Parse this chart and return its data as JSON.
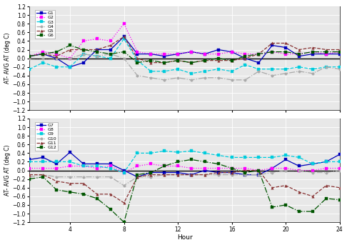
{
  "hours": [
    1,
    2,
    3,
    4,
    5,
    6,
    7,
    8,
    9,
    10,
    11,
    12,
    13,
    14,
    15,
    16,
    17,
    18,
    19,
    20,
    21,
    22,
    23,
    24
  ],
  "top": {
    "G1": [
      0.05,
      0.1,
      0.0,
      -0.2,
      -0.1,
      0.2,
      0.2,
      0.5,
      0.1,
      0.1,
      0.05,
      0.1,
      0.15,
      0.1,
      0.2,
      0.15,
      0.0,
      -0.1,
      0.3,
      0.25,
      0.05,
      0.1,
      0.1,
      0.1
    ],
    "G2": [
      0.05,
      0.15,
      0.1,
      0.0,
      0.4,
      0.45,
      0.4,
      0.8,
      0.15,
      0.1,
      0.1,
      0.1,
      0.15,
      0.1,
      0.1,
      0.15,
      0.1,
      0.1,
      0.15,
      0.1,
      0.1,
      0.15,
      0.1,
      0.15
    ],
    "G3": [
      -0.25,
      -0.1,
      -0.2,
      -0.2,
      0.1,
      0.05,
      0.0,
      0.45,
      -0.05,
      -0.3,
      -0.3,
      -0.25,
      -0.35,
      -0.3,
      -0.25,
      -0.3,
      -0.15,
      -0.25,
      -0.25,
      -0.25,
      -0.2,
      -0.25,
      -0.2,
      -0.2
    ],
    "G4": [
      0.0,
      0.0,
      0.0,
      0.0,
      0.1,
      0.05,
      0.1,
      0.0,
      -0.4,
      -0.45,
      -0.5,
      -0.45,
      -0.5,
      -0.45,
      -0.45,
      -0.5,
      -0.5,
      -0.3,
      -0.4,
      -0.35,
      -0.3,
      -0.35,
      -0.2,
      -0.25
    ],
    "G5": [
      0.05,
      0.1,
      0.05,
      0.2,
      0.2,
      0.2,
      0.3,
      0.5,
      0.0,
      -0.1,
      -0.1,
      -0.05,
      -0.1,
      -0.05,
      -0.05,
      -0.05,
      0.0,
      0.1,
      0.35,
      0.35,
      0.2,
      0.25,
      0.2,
      0.2
    ],
    "G6": [
      0.05,
      0.1,
      0.15,
      0.3,
      0.2,
      0.15,
      0.1,
      0.15,
      -0.1,
      -0.05,
      -0.1,
      -0.05,
      -0.1,
      -0.05,
      0.0,
      -0.05,
      0.05,
      0.1,
      0.15,
      0.15,
      0.1,
      0.15,
      0.15,
      0.15
    ]
  },
  "bottom": {
    "G7": [
      0.25,
      0.3,
      0.15,
      0.42,
      0.15,
      0.15,
      0.15,
      0.0,
      -0.15,
      -0.05,
      -0.05,
      -0.05,
      -0.1,
      0.0,
      -0.05,
      -0.05,
      -0.1,
      -0.1,
      0.05,
      0.25,
      0.1,
      0.15,
      0.2,
      0.37
    ],
    "G8": [
      0.05,
      0.05,
      0.05,
      0.1,
      0.1,
      0.05,
      0.1,
      -0.05,
      0.1,
      0.15,
      0.1,
      0.1,
      0.05,
      0.05,
      0.05,
      0.05,
      0.05,
      0.0,
      0.05,
      0.05,
      0.0,
      0.0,
      0.05,
      0.05
    ],
    "G9": [
      0.2,
      0.2,
      0.2,
      0.2,
      0.1,
      0.1,
      0.05,
      -0.05,
      0.4,
      0.4,
      0.45,
      0.42,
      0.45,
      0.4,
      0.35,
      0.3,
      0.3,
      0.3,
      0.3,
      0.35,
      0.3,
      0.15,
      0.2,
      0.2
    ],
    "G10": [
      -0.15,
      -0.1,
      -0.15,
      -0.15,
      -0.15,
      -0.15,
      -0.15,
      -0.35,
      -0.15,
      -0.15,
      -0.1,
      -0.1,
      -0.1,
      -0.1,
      -0.1,
      -0.1,
      -0.1,
      -0.1,
      -0.05,
      0.0,
      0.0,
      -0.05,
      -0.05,
      0.0
    ],
    "G11": [
      -0.1,
      -0.1,
      -0.25,
      -0.3,
      -0.3,
      -0.55,
      -0.55,
      -0.75,
      -0.15,
      -0.1,
      -0.1,
      -0.1,
      -0.1,
      -0.1,
      -0.05,
      -0.05,
      0.0,
      0.0,
      -0.4,
      -0.35,
      -0.5,
      -0.6,
      -0.35,
      -0.4
    ],
    "G12": [
      -0.2,
      -0.15,
      -0.45,
      -0.5,
      -0.55,
      -0.65,
      -0.9,
      -1.2,
      -0.1,
      -0.05,
      0.1,
      0.2,
      0.25,
      0.2,
      0.15,
      0.05,
      -0.05,
      0.0,
      -0.85,
      -0.8,
      -0.95,
      -0.95,
      -0.65,
      -0.68
    ]
  },
  "colors_top": {
    "G1": {
      "color": "#0000bb",
      "linestyle": "-",
      "marker": "s",
      "markersize": 2.5,
      "linewidth": 0.9
    },
    "G2": {
      "color": "#ff00ff",
      "linestyle": ":",
      "marker": "s",
      "markersize": 2.5,
      "linewidth": 0.9
    },
    "G3": {
      "color": "#00ccdd",
      "linestyle": "--",
      "marker": "s",
      "markersize": 2.5,
      "linewidth": 0.9
    },
    "G4": {
      "color": "#aaaaaa",
      "linestyle": "-.",
      "marker": "o",
      "markersize": 2.5,
      "linewidth": 0.9
    },
    "G5": {
      "color": "#883333",
      "linestyle": "--",
      "marker": "^",
      "markersize": 2.5,
      "linewidth": 0.9
    },
    "G6": {
      "color": "#005500",
      "linestyle": "-.",
      "marker": "s",
      "markersize": 2.5,
      "linewidth": 0.9
    }
  },
  "colors_bottom": {
    "G7": {
      "color": "#0000bb",
      "linestyle": "-",
      "marker": "s",
      "markersize": 2.5,
      "linewidth": 0.9
    },
    "G8": {
      "color": "#ff00ff",
      "linestyle": ":",
      "marker": "s",
      "markersize": 2.5,
      "linewidth": 0.9
    },
    "G9": {
      "color": "#00ccdd",
      "linestyle": "--",
      "marker": "s",
      "markersize": 2.5,
      "linewidth": 0.9
    },
    "G10": {
      "color": "#aaaaaa",
      "linestyle": "-.",
      "marker": "o",
      "markersize": 2.5,
      "linewidth": 0.9
    },
    "G11": {
      "color": "#883333",
      "linestyle": "--",
      "marker": "^",
      "markersize": 2.5,
      "linewidth": 0.9
    },
    "G12": {
      "color": "#005500",
      "linestyle": "-.",
      "marker": "s",
      "markersize": 2.5,
      "linewidth": 0.9
    }
  },
  "ylim": [
    -1.2,
    1.2
  ],
  "yticks": [
    -1.2,
    -1.0,
    -0.8,
    -0.6,
    -0.4,
    -0.2,
    0.0,
    0.2,
    0.4,
    0.6,
    0.8,
    1.0,
    1.2
  ],
  "xticks": [
    4,
    8,
    12,
    16,
    20,
    24
  ],
  "xlim": [
    1,
    24
  ],
  "ylabel": "AT- AVG AT (deg C)",
  "xlabel": "Hour",
  "bg_color": "#e8e8e8",
  "grid_color": "#ffffff"
}
